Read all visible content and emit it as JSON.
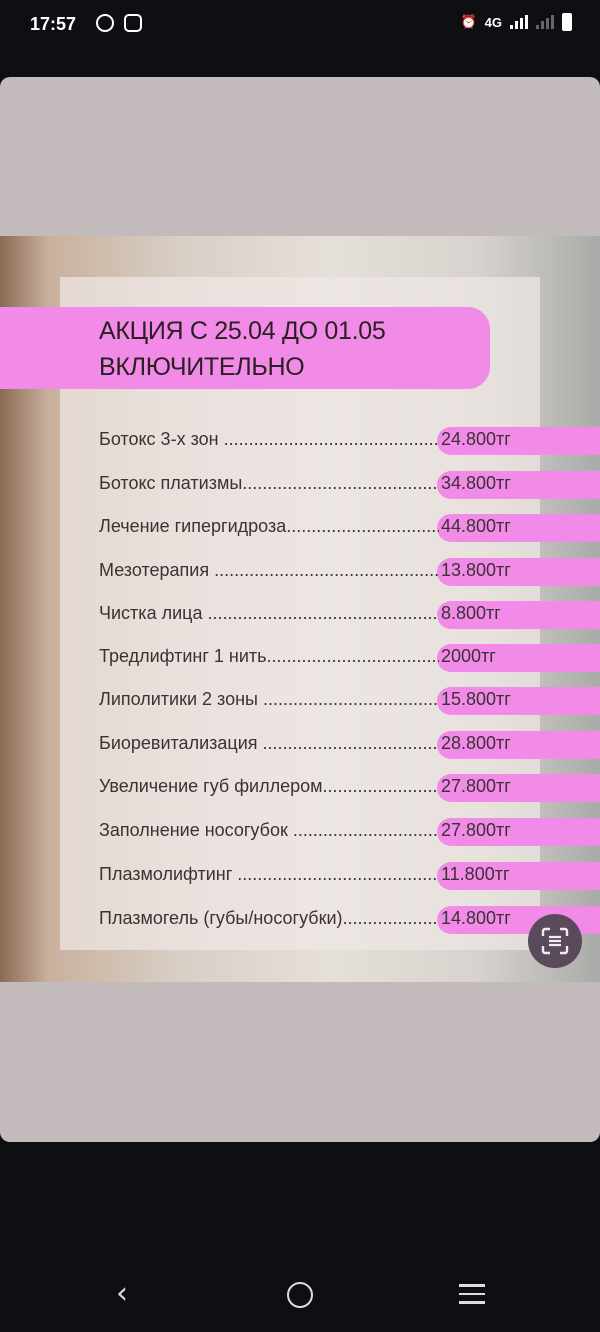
{
  "status_bar": {
    "time": "17:57",
    "network": "4G",
    "notification_icons": [
      "whatsapp-icon",
      "instagram-icon"
    ]
  },
  "promo": {
    "title_line1": "АКЦИЯ С 25.04 ДО 01.05",
    "title_line2": "ВКЛЮЧИТЕЛЬНО",
    "items": [
      {
        "label": "Ботокс 3-х зон ................................................",
        "price": "24.800тг"
      },
      {
        "label": "Ботокс платизмы................................................",
        "price": "34.800тг"
      },
      {
        "label": "Лечение гипергидроза............................................",
        "price": "44.800тг"
      },
      {
        "label": "Мезотерапия ...................................................",
        "price": "13.800тг"
      },
      {
        "label": "Чистка лица ...................................................",
        "price": "8.800тг"
      },
      {
        "label": "Тредлифтинг 1 нить.............................................",
        "price": "2000тг"
      },
      {
        "label": "Липолитики 2 зоны .............................................",
        "price": "15.800тг"
      },
      {
        "label": "Биоревитализация ..............................................",
        "price": "28.800тг"
      },
      {
        "label": "Увеличение губ филлером........................................",
        "price": "27.800тг"
      },
      {
        "label": "Заполнение носогубок ..........................................",
        "price": "27.800тг"
      },
      {
        "label": "Плазмолифтинг .................................................",
        "price": "11.800тг"
      },
      {
        "label": "Плазмогель (губы/носогубки)....................................",
        "price": "14.800тг"
      }
    ]
  },
  "colors": {
    "accent_pink": "#f28ae8",
    "scan_button": "#5a4a5b",
    "card_bg": "#c3bbbb"
  }
}
